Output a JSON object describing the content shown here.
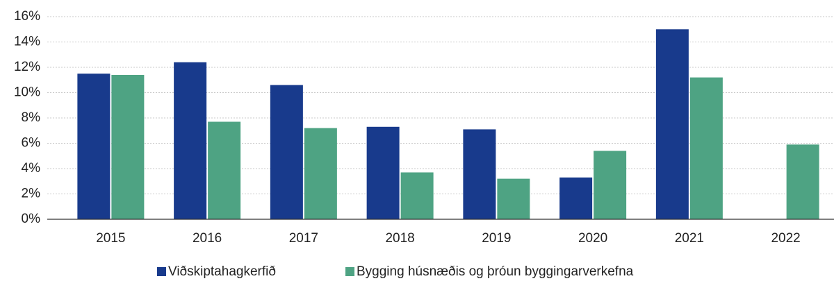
{
  "chart_data": {
    "type": "bar",
    "categories": [
      "2015",
      "2016",
      "2017",
      "2018",
      "2019",
      "2020",
      "2021",
      "2022"
    ],
    "series": [
      {
        "name": "Viðskiptahagkerfið",
        "color": "#183a8c",
        "values": [
          11.5,
          12.4,
          10.6,
          7.3,
          7.1,
          3.3,
          15.0,
          null
        ]
      },
      {
        "name": "Bygging húsnæðis og þróun byggingarverkefna",
        "color": "#4ea383",
        "values": [
          11.4,
          7.7,
          7.2,
          3.7,
          3.2,
          5.4,
          11.2,
          5.9
        ]
      }
    ],
    "ylim": [
      0,
      16
    ],
    "yticks": [
      {
        "value": 0,
        "label": "0%"
      },
      {
        "value": 2,
        "label": "2%"
      },
      {
        "value": 4,
        "label": "4%"
      },
      {
        "value": 6,
        "label": "6%"
      },
      {
        "value": 8,
        "label": "8%"
      },
      {
        "value": 10,
        "label": "10%"
      },
      {
        "value": 12,
        "label": "12%"
      },
      {
        "value": 14,
        "label": "14%"
      },
      {
        "value": 16,
        "label": "16%"
      }
    ],
    "grid": true,
    "legend": "bottom"
  }
}
